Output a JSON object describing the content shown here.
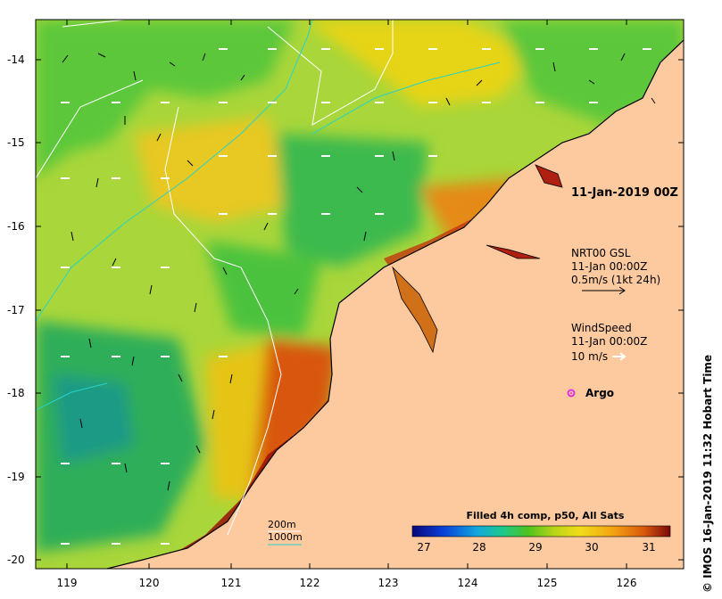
{
  "map": {
    "lat_ticks": [
      "-14",
      "-15",
      "-16",
      "-17",
      "-18",
      "-19",
      "-20"
    ],
    "lon_ticks": [
      "119",
      "120",
      "121",
      "122",
      "123",
      "124",
      "125",
      "126"
    ]
  },
  "legend": {
    "date_title": "11-Jan-2019 00Z",
    "current_label": "NRT00 GSL",
    "current_time": "11-Jan 00:00Z",
    "current_scale": "0.5m/s (1kt 24h)",
    "wind_label": "WindSpeed",
    "wind_time": "11-Jan 00:00Z",
    "wind_scale": "10 m/s",
    "argo_label": "Argo",
    "isobath_200": "200m",
    "isobath_1000": "1000m"
  },
  "colorbar": {
    "title": "Filled 4h comp, p50, All Sats",
    "ticks": [
      "27",
      "28",
      "29",
      "30",
      "31"
    ],
    "colors": [
      "#08087a",
      "#0a3fd8",
      "#12a7e0",
      "#1cc98a",
      "#4fc21c",
      "#b9d51a",
      "#f2dc18",
      "#f3a212",
      "#d8560c",
      "#7a0a0a"
    ]
  },
  "credit": "IMOS 16-Jan-2019 11:32 Hobart Time",
  "colors": {
    "land": "#fdcaa0",
    "sea_green": "#2db94a",
    "sea_yellow": "#e6d417",
    "sea_red": "#9b1208",
    "isobath_200": "#ffffff",
    "isobath_1000": "#26d3c8",
    "argo": "#e030e0"
  }
}
